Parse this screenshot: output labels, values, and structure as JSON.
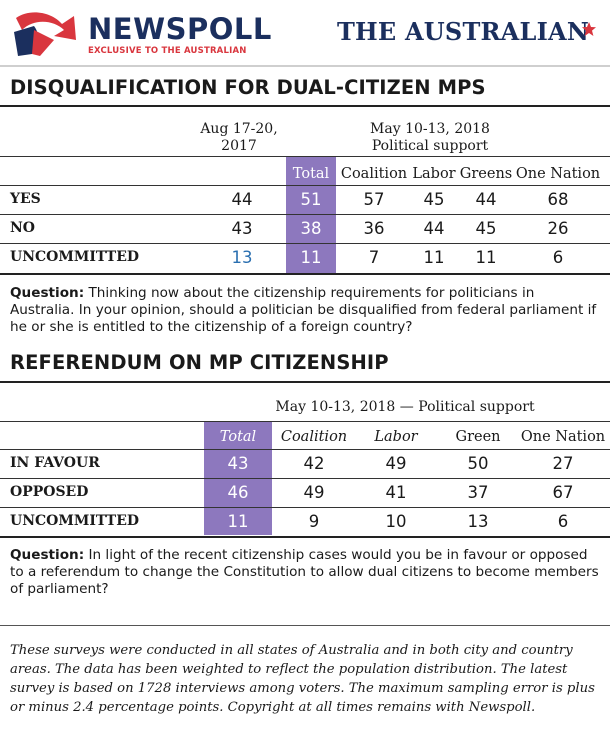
{
  "brand": {
    "newspoll": "NEWSPOLL",
    "newspoll_sub": "EXCLUSIVE TO THE AUSTRALIAN",
    "publication": "THE AUSTRALIAN",
    "colors": {
      "navy": "#1b2f5e",
      "red": "#d9363e",
      "purple": "#8d78be",
      "blue": "#2a6fb0"
    }
  },
  "poll1": {
    "title": "DISQUALIFICATION FOR DUAL-CITIZEN MPS",
    "date_prev_line1": "Aug 17-20,",
    "date_prev_line2": "2017",
    "date_curr_line1": "May 10-13, 2018",
    "date_curr_line2": "Political support",
    "columns": [
      "Total",
      "Coalition",
      "Labor",
      "Greens",
      "One Nation"
    ],
    "rows": [
      {
        "label": "YES",
        "prev": "44",
        "values": [
          "51",
          "57",
          "45",
          "44",
          "68"
        ]
      },
      {
        "label": "NO",
        "prev": "43",
        "values": [
          "38",
          "36",
          "44",
          "45",
          "26"
        ]
      },
      {
        "label": "UNCOMMITTED",
        "prev": "13",
        "values": [
          "11",
          "7",
          "11",
          "11",
          "6"
        ]
      }
    ],
    "question_label": "Question:",
    "question_text": " Thinking now about the citizenship requirements for politicians in Australia. In your opinion, should a politician be disqualified from federal parliament if he or she is entitled to the citizenship of a foreign country?"
  },
  "poll2": {
    "title": "REFERENDUM ON MP CITIZENSHIP",
    "date": "May 10-13, 2018 — Political support",
    "columns": [
      "Total",
      "Coalition",
      "Labor",
      "Green",
      "One Nation"
    ],
    "rows": [
      {
        "label": "IN FAVOUR",
        "values": [
          "43",
          "42",
          "49",
          "50",
          "27"
        ]
      },
      {
        "label": "OPPOSED",
        "values": [
          "46",
          "49",
          "41",
          "37",
          "67"
        ]
      },
      {
        "label": "UNCOMMITTED",
        "values": [
          "11",
          "9",
          "10",
          "13",
          "6"
        ]
      }
    ],
    "question_label": "Question:",
    "question_text": " In light of the recent citizenship cases would you be in favour or opposed to a referendum to change the Constitution to allow dual citizens to become members of parliament?"
  },
  "footnote": "These surveys were conducted in all states of Australia and in both city and country areas. The data has been weighted to reflect the population distribution. The latest survey is based on 1728 interviews among voters. The maximum sampling error is plus or minus 2.4 percentage points. Copyright at all times remains with Newspoll."
}
